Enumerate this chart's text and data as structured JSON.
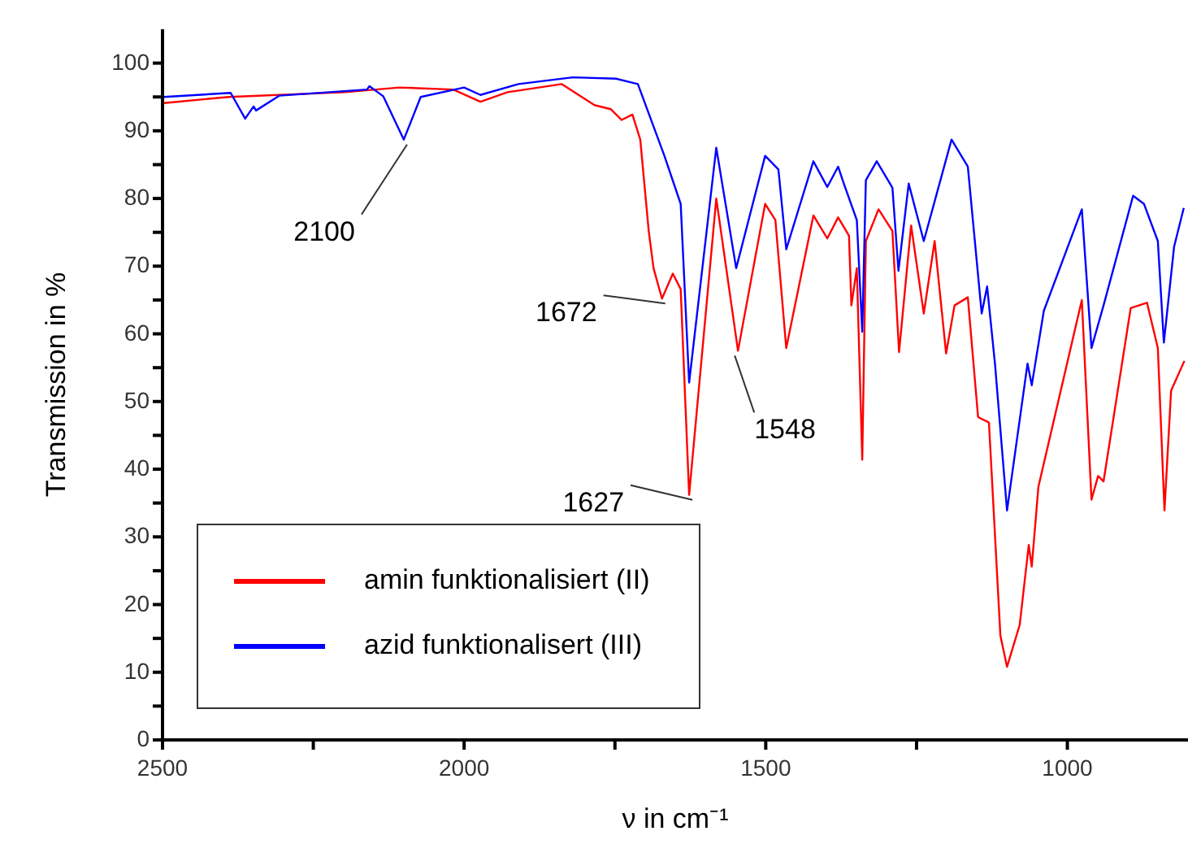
{
  "chart_data": {
    "type": "line",
    "xlabel": "ν in cm⁻¹",
    "ylabel": "Transmission in %",
    "xlim": [
      2500,
      800
    ],
    "xticks": [
      2500,
      {
        "value": 2250,
        "label": null
      },
      2000,
      {
        "value": 1750,
        "label": null
      },
      1500,
      {
        "value": 1250,
        "label": null
      },
      1000
    ],
    "ylim": [
      0,
      105
    ],
    "yticks": [
      0,
      {
        "value": 5,
        "label": null
      },
      10,
      {
        "value": 15,
        "label": null
      },
      20,
      {
        "value": 25,
        "label": null
      },
      30,
      {
        "value": 35,
        "label": null
      },
      40,
      {
        "value": 45,
        "label": null
      },
      50,
      {
        "value": 55,
        "label": null
      },
      60,
      {
        "value": 65,
        "label": null
      },
      70,
      {
        "value": 75,
        "label": null
      },
      80,
      {
        "value": 85,
        "label": null
      },
      90,
      {
        "value": 95,
        "label": null
      },
      100
    ],
    "grid": false,
    "legend": "bottom left",
    "marker": "none",
    "line_style": "solid",
    "series": [
      {
        "name": "amin funktionalisiert (II)",
        "color": "#ff0000",
        "x": [
          2498,
          2390,
          2198,
          2107,
          2018,
          1973,
          1928,
          1838,
          1784,
          1757,
          1739,
          1721,
          1708,
          1694,
          1686,
          1672,
          1654,
          1641,
          1627,
          1582,
          1546,
          1501,
          1484,
          1466,
          1421,
          1398,
          1380,
          1362,
          1358,
          1349,
          1340,
          1334,
          1313,
          1290,
          1279,
          1259,
          1238,
          1220,
          1201,
          1187,
          1165,
          1148,
          1130,
          1111,
          1100,
          1079,
          1064,
          1059,
          1048,
          976,
          960,
          949,
          940,
          895,
          868,
          850,
          839,
          828,
          806
        ],
        "values": [
          94.1,
          95.0,
          95.7,
          96.4,
          96.1,
          94.3,
          95.7,
          96.9,
          93.8,
          93.2,
          91.6,
          92.4,
          88.7,
          75.2,
          69.7,
          65.2,
          68.9,
          66.6,
          36.2,
          80.0,
          57.5,
          79.2,
          76.8,
          57.9,
          77.5,
          74.1,
          77.2,
          74.5,
          64.2,
          69.7,
          41.4,
          73.7,
          78.4,
          75.2,
          57.3,
          76.0,
          63.0,
          73.7,
          57.1,
          64.2,
          65.4,
          47.7,
          46.9,
          15.4,
          10.8,
          17.0,
          28.8,
          25.6,
          37.4,
          65.0,
          35.5,
          39.0,
          38.2,
          63.8,
          64.6,
          57.9,
          33.9,
          51.6,
          56.0
        ]
      },
      {
        "name": "azid funktionalisert (III)",
        "color": "#0000ff",
        "x": [
          2498,
          2387,
          2363,
          2349,
          2345,
          2306,
          2161,
          2157,
          2134,
          2100,
          2072,
          2000,
          1973,
          1910,
          1820,
          1748,
          1712,
          1668,
          1641,
          1627,
          1582,
          1549,
          1501,
          1479,
          1466,
          1421,
          1398,
          1380,
          1371,
          1349,
          1340,
          1334,
          1316,
          1290,
          1280,
          1263,
          1238,
          1192,
          1165,
          1142,
          1133,
          1120,
          1100,
          1066,
          1059,
          1039,
          976,
          960,
          940,
          891,
          873,
          850,
          840,
          823,
          807
        ],
        "values": [
          95.0,
          95.6,
          91.8,
          93.6,
          93.0,
          95.2,
          96.1,
          96.6,
          95.1,
          88.7,
          95.0,
          96.4,
          95.3,
          96.9,
          97.9,
          97.7,
          96.9,
          86.3,
          79.2,
          52.8,
          87.5,
          69.7,
          86.3,
          84.3,
          72.5,
          85.5,
          81.7,
          84.7,
          82.3,
          76.8,
          60.3,
          82.7,
          85.5,
          81.6,
          69.3,
          82.2,
          73.7,
          88.7,
          84.7,
          63.0,
          67.0,
          55.6,
          33.9,
          55.6,
          52.4,
          63.4,
          78.4,
          57.9,
          64.2,
          80.4,
          79.2,
          73.7,
          58.7,
          72.9,
          78.6
        ]
      }
    ],
    "annotations": [
      {
        "text": "2100",
        "x": 2100,
        "y": 88.7
      },
      {
        "text": "1672",
        "x": 1672,
        "y": 65.2
      },
      {
        "text": "1627",
        "x": 1627,
        "y": 36.2
      },
      {
        "text": "1548",
        "x": 1546,
        "y": 57.5
      }
    ]
  }
}
